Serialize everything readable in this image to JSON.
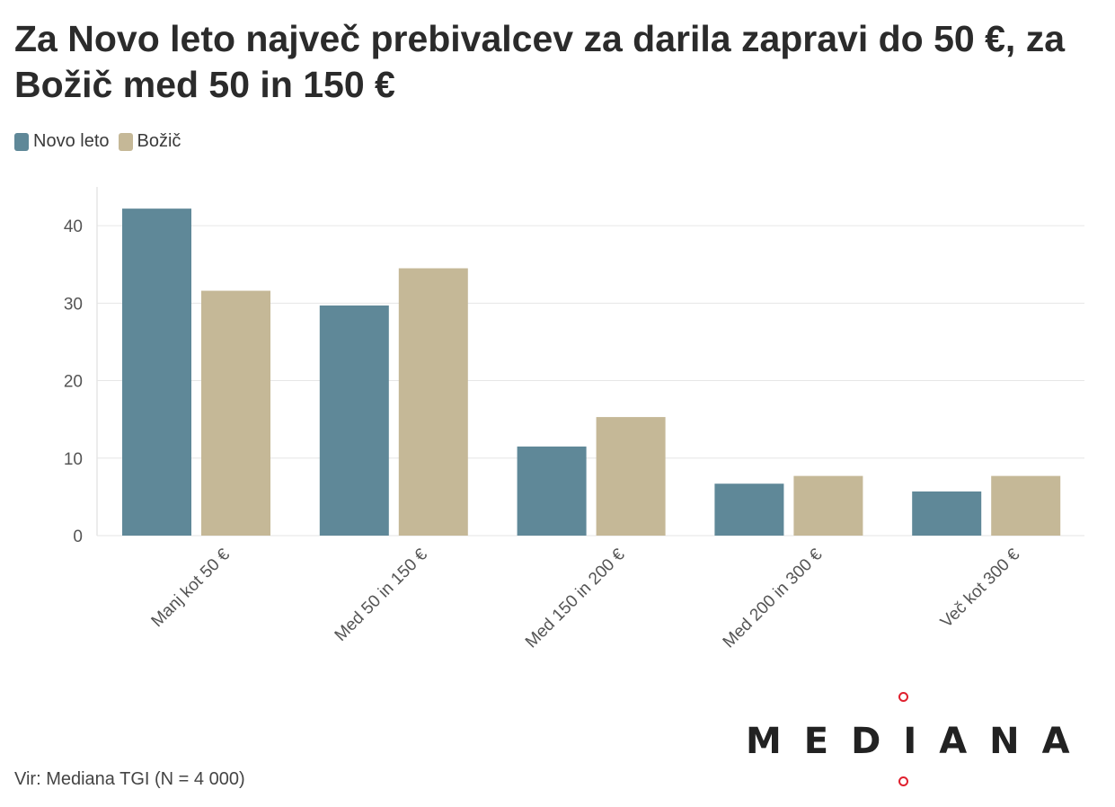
{
  "title": "Za Novo leto največ prebivalcev za darila zapravi do 50 €, za Božič med 50 in 150 €",
  "legend": [
    {
      "label": "Novo leto",
      "color": "#5f8898"
    },
    {
      "label": "Božič",
      "color": "#c5b897"
    }
  ],
  "source": "Vir: Mediana TGI (N = 4 000)",
  "logo": {
    "text": "MEDIANA",
    "dot_color": "#e0202e"
  },
  "chart_data": {
    "type": "bar",
    "title": "Za Novo leto največ prebivalcev za darila zapravi do 50 €, za Božič med 50 in 150 €",
    "xlabel": "",
    "ylabel": "",
    "categories": [
      "Manj kot 50 €",
      "Med 50 in 150 €",
      "Med 150 in 200 €",
      "Med 200 in 300 €",
      "Več kot 300 €"
    ],
    "series": [
      {
        "name": "Novo leto",
        "color": "#5f8898",
        "values": [
          42.2,
          29.7,
          11.5,
          6.7,
          5.7
        ]
      },
      {
        "name": "Božič",
        "color": "#c5b897",
        "values": [
          31.6,
          34.5,
          15.3,
          7.7,
          7.7
        ]
      }
    ],
    "ylim": [
      0,
      45
    ],
    "yticks": [
      0,
      10,
      20,
      30,
      40
    ],
    "grid": true,
    "legend_position": "top-left"
  }
}
